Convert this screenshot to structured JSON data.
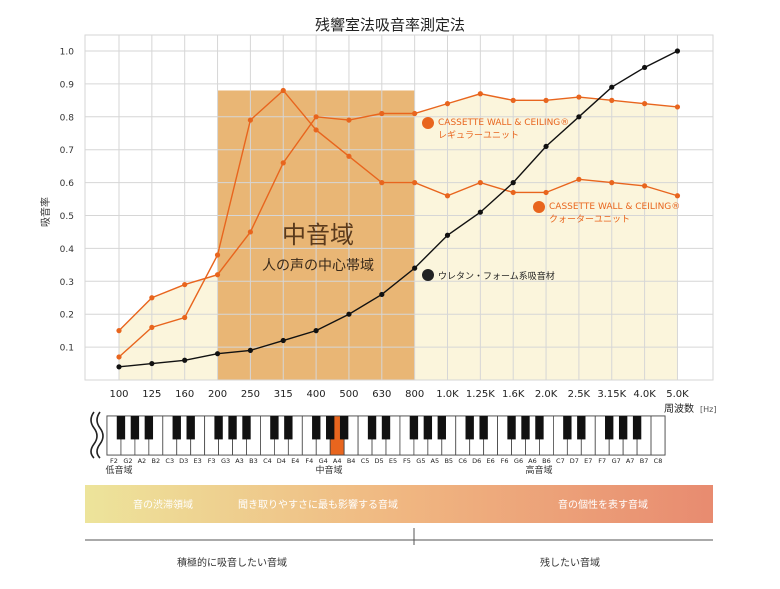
{
  "chart_data": {
    "type": "line",
    "title": "残響室法吸音率測定法",
    "ylabel": "吸音率",
    "xlabel": "周波数",
    "xunit": "[Hz]",
    "ylim": [
      0,
      1.0
    ],
    "yticks": [
      "0.1",
      "0.2",
      "0.3",
      "0.4",
      "0.5",
      "0.6",
      "0.7",
      "0.8",
      "0.9",
      "1.0"
    ],
    "categories": [
      "100",
      "125",
      "160",
      "200",
      "250",
      "315",
      "400",
      "500",
      "630",
      "800",
      "1.0K",
      "1.25K",
      "1.6K",
      "2.0K",
      "2.5K",
      "3.15K",
      "4.0K",
      "5.0K"
    ],
    "grid": true,
    "series": [
      {
        "name": "CASSETTE WALL & CEILING® レギュラーユニット",
        "name_en": "CASSETTE WALL & CEILING®",
        "name_jp": "レギュラーユニット",
        "color": "#e8651e",
        "values": [
          0.15,
          0.25,
          0.29,
          0.32,
          0.45,
          0.66,
          0.8,
          0.79,
          0.81,
          0.81,
          0.84,
          0.87,
          0.85,
          0.85,
          0.86,
          0.85,
          0.84,
          0.83
        ]
      },
      {
        "name": "CASSETTE WALL & CEILING® クォーターユニット",
        "name_en": "CASSETTE WALL & CEILING®",
        "name_jp": "クォーターユニット",
        "color": "#e8651e",
        "values": [
          0.07,
          0.16,
          0.19,
          0.38,
          0.79,
          0.88,
          0.76,
          0.68,
          0.6,
          0.6,
          0.56,
          0.6,
          0.57,
          0.57,
          0.61,
          0.6,
          0.59,
          0.56
        ]
      },
      {
        "name": "ウレタン・フォーム系吸音材",
        "color": "#111111",
        "values": [
          0.04,
          0.05,
          0.06,
          0.08,
          0.09,
          0.12,
          0.15,
          0.2,
          0.26,
          0.34,
          0.44,
          0.51,
          0.6,
          0.71,
          0.8,
          0.89,
          0.95,
          1.0
        ]
      }
    ],
    "mid_band": {
      "title": "中音域",
      "subtitle": "人の声の中心帯域",
      "from_category": "200",
      "to_category": "800"
    }
  },
  "piano": {
    "note_labels": [
      "F2",
      "G2",
      "A2",
      "B2",
      "C3",
      "D3",
      "E3",
      "F3",
      "G3",
      "A3",
      "B3",
      "C4",
      "D4",
      "E4",
      "F4",
      "G4",
      "A4",
      "B4",
      "C5",
      "D5",
      "E5",
      "F5",
      "G5",
      "A5",
      "B5",
      "C6",
      "D6",
      "E6",
      "F6",
      "G6",
      "A6",
      "B6",
      "C7",
      "D7",
      "E7",
      "F7",
      "G7",
      "A7",
      "B7",
      "C8"
    ],
    "highlight": "A4",
    "ranges": [
      "低音域",
      "中音域",
      "高音域"
    ]
  },
  "bands": {
    "left": "音の渋滞領域",
    "middle": "聞き取りやすさに最も影響する音域",
    "right": "音の個性を表す音域"
  },
  "bottom_labels": {
    "left": "積極的に吸音したい音域",
    "right": "残したい音域"
  },
  "colors": {
    "accent": "#e8651e",
    "mid_band_fill": "#e9b675",
    "cream_fill": "#fbf5dc",
    "urethane": "#111111",
    "grid": "#d6d6d6",
    "band_gradient_start": "#ede49b",
    "band_gradient_mid": "#f0b781",
    "band_gradient_end": "#e88b70"
  }
}
